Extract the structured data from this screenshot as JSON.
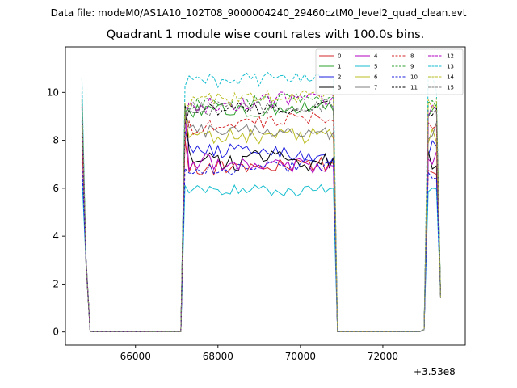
{
  "header": {
    "suptitle": "Data file: modeM0/AS1A10_102T08_9000004240_29460cztM0_level2_quad_clean.evt",
    "offset_label": "+3.53e8"
  },
  "chart_data": {
    "type": "line",
    "title": "Quadrant 1 module wise count rates with 100.0s bins.",
    "xlabel": "",
    "ylabel": "",
    "x_offset": 353000000,
    "xlim": [
      64300,
      74000
    ],
    "ylim": [
      -0.55,
      11.9
    ],
    "xticks": [
      66000,
      68000,
      70000,
      72000
    ],
    "yticks": [
      0,
      2,
      4,
      6,
      8,
      10
    ],
    "grid": false,
    "legend": {
      "placement": "top-right",
      "columns": 4
    },
    "segments": [
      {
        "x_start": 64700,
        "x_end": 64900
      },
      {
        "x_start": 67100,
        "x_end": 70800
      },
      {
        "x_start": 73000,
        "x_end": 73400
      }
    ],
    "gaps": [
      {
        "x_start": 64900,
        "x_end": 67100
      },
      {
        "x_start": 70800,
        "x_end": 73000
      }
    ],
    "series": [
      {
        "name": "0",
        "color": "#d62728",
        "dash": false,
        "level_start": 7.8,
        "level": 6.8,
        "level_end": 7.0,
        "noise": 0.32
      },
      {
        "name": "1",
        "color": "#2ca02c",
        "dash": false,
        "level_start": 9.6,
        "level": 9.2,
        "level_end": 9.4,
        "noise": 0.3
      },
      {
        "name": "2",
        "color": "#1f1fe0",
        "dash": false,
        "level_start": 8.4,
        "level": 7.7,
        "level_end": 7.3,
        "noise": 0.32
      },
      {
        "name": "3",
        "color": "#000000",
        "dash": false,
        "level_start": 9.3,
        "level": 7.2,
        "level_end": 7.1,
        "noise": 0.45
      },
      {
        "name": "4",
        "color": "#b000c0",
        "dash": false,
        "level_start": 9.5,
        "level": 7.1,
        "level_end": 7.0,
        "noise": 0.4
      },
      {
        "name": "5",
        "color": "#17becf",
        "dash": false,
        "level_start": 6.2,
        "level": 5.9,
        "level_end": 5.9,
        "noise": 0.25
      },
      {
        "name": "6",
        "color": "#bcbd22",
        "dash": false,
        "level_start": 9.0,
        "level": 8.1,
        "level_end": 8.2,
        "noise": 0.35
      },
      {
        "name": "7",
        "color": "#7f7f7f",
        "dash": false,
        "level_start": 9.1,
        "level": 8.4,
        "level_end": 8.3,
        "noise": 0.3
      },
      {
        "name": "8",
        "color": "#d62728",
        "dash": true,
        "level_start": 8.2,
        "level": 8.5,
        "level_end": 9.0,
        "noise": 0.3
      },
      {
        "name": "9",
        "color": "#2ca02c",
        "dash": true,
        "level_start": 9.2,
        "level": 9.5,
        "level_end": 9.8,
        "noise": 0.25
      },
      {
        "name": "10",
        "color": "#1f1fe0",
        "dash": true,
        "level_start": 6.7,
        "level": 6.7,
        "level_end": 7.0,
        "noise": 0.25
      },
      {
        "name": "11",
        "color": "#000000",
        "dash": true,
        "level_start": 9.0,
        "level": 9.2,
        "level_end": 9.4,
        "noise": 0.3
      },
      {
        "name": "12",
        "color": "#b000c0",
        "dash": true,
        "level_start": 8.9,
        "level": 9.4,
        "level_end": 9.8,
        "noise": 0.35
      },
      {
        "name": "13",
        "color": "#17becf",
        "dash": true,
        "level_start": 10.2,
        "level": 10.4,
        "level_end": 10.7,
        "noise": 0.3
      },
      {
        "name": "14",
        "color": "#bcbd22",
        "dash": true,
        "level_start": 9.3,
        "level": 9.6,
        "level_end": 9.9,
        "noise": 0.3
      },
      {
        "name": "15",
        "color": "#7f7f7f",
        "dash": true,
        "level_start": 9.1,
        "level": 9.3,
        "level_end": 9.5,
        "noise": 0.3
      }
    ]
  }
}
